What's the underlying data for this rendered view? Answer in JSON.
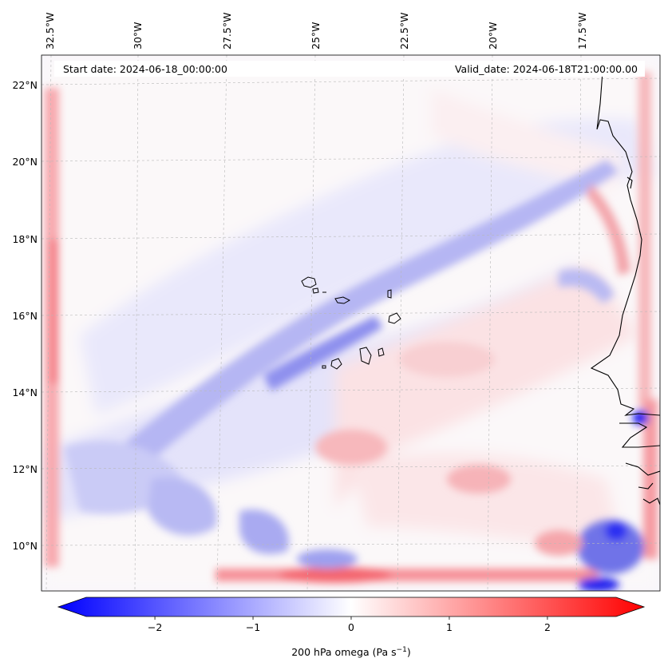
{
  "map": {
    "start_label": "Start date: 2024-06-18_00:00:00",
    "valid_label": "Valid_date: 2024-06-18T21:00:00.00",
    "lon_labels": [
      "32.5°W",
      "30°W",
      "27.5°W",
      "25°W",
      "22.5°W",
      "20°W",
      "17.5°W"
    ],
    "lat_labels": [
      "22°N",
      "20°N",
      "18°N",
      "16°N",
      "14°N",
      "12°N",
      "10°N"
    ],
    "colors": {
      "negative": "#0000ff",
      "positive": "#ff0000",
      "neutral": "#ffffff",
      "coastline": "#000000",
      "gridline": "#b0b0b0"
    }
  },
  "colorbar": {
    "label_main": "200 hPa omega (Pa s",
    "label_exp": "−1",
    "label_close": ")",
    "min": -2.7,
    "max": 2.7,
    "ticks": [
      "−2",
      "−1",
      "0",
      "1",
      "2"
    ],
    "tick_values": [
      -2,
      -1,
      0,
      1,
      2
    ],
    "extend": "both"
  }
}
